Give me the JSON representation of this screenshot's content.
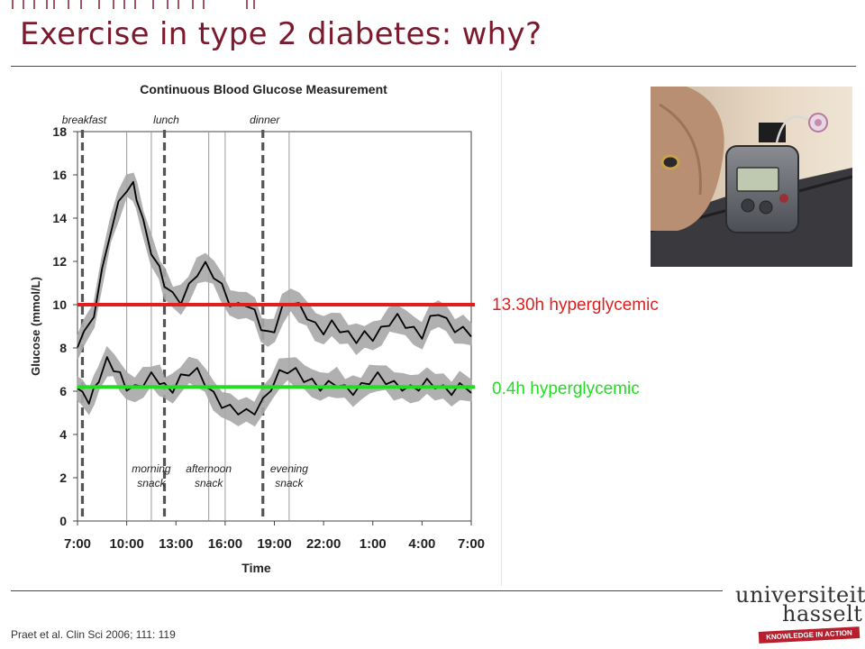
{
  "slide": {
    "title": "Exercise in type 2 diabetes: why?",
    "citation": "Praet et al. Clin Sci 2006; 111: 119",
    "colors": {
      "title": "#7a1a2c",
      "rule": "#8c2a3a",
      "hyper_line": "#e01e1e",
      "normo_line": "#22dd22"
    }
  },
  "annotations": [
    {
      "text": "13.30h hyperglycemic",
      "color": "#e01e1e"
    },
    {
      "text": "0.4h hyperglycemic",
      "color": "#22dd22"
    }
  ],
  "logo": {
    "line1": "universiteit",
    "line2": "hasselt",
    "tagline": "KNOWLEDGE IN ACTION"
  },
  "photo": {
    "icon": "insulin-pump-photo"
  },
  "chart_data": {
    "type": "line",
    "title": "Continuous Blood Glucose Measurement",
    "xlabel": "Time",
    "ylabel": "Glucose (mmol/L)",
    "x_ticks": [
      "7:00",
      "10:00",
      "13:00",
      "16:00",
      "19:00",
      "22:00",
      "1:00",
      "4:00",
      "7:00"
    ],
    "x_range_hours": [
      0,
      24
    ],
    "y_ticks": [
      0,
      2,
      4,
      6,
      8,
      10,
      12,
      14,
      16,
      18
    ],
    "ylim": [
      0,
      18
    ],
    "grid": "vertical lines at 10:00 and 16:00",
    "meals": [
      {
        "label": "breakfast",
        "hour": 0.3
      },
      {
        "label": "lunch",
        "hour": 5.3
      },
      {
        "label": "dinner",
        "hour": 11.3
      }
    ],
    "snacks": [
      {
        "label": "morning snack",
        "hour": 4.5
      },
      {
        "label": "afternoon snack",
        "hour": 8.0
      },
      {
        "label": "evening snack",
        "hour": 12.9
      }
    ],
    "series": [
      {
        "color": "#000000",
        "band_color": "#a8a8a8",
        "points": [
          [
            0,
            8.2
          ],
          [
            0.4,
            8.6
          ],
          [
            1,
            9.6
          ],
          [
            1.5,
            11.5
          ],
          [
            2,
            13.4
          ],
          [
            2.5,
            14.6
          ],
          [
            3,
            15.4
          ],
          [
            3.4,
            15.5
          ],
          [
            3.6,
            15.0
          ],
          [
            4,
            13.8
          ],
          [
            4.5,
            12.5
          ],
          [
            5,
            11.6
          ],
          [
            5.3,
            11.0
          ],
          [
            5.8,
            10.4
          ],
          [
            6.3,
            10.2
          ],
          [
            6.8,
            10.8
          ],
          [
            7.3,
            11.5
          ],
          [
            7.8,
            11.8
          ],
          [
            8.3,
            11.4
          ],
          [
            8.8,
            10.8
          ],
          [
            9.3,
            10.1
          ],
          [
            9.8,
            9.9
          ],
          [
            10.3,
            10.1
          ],
          [
            10.8,
            9.6
          ],
          [
            11.2,
            9.0
          ],
          [
            11.6,
            8.6
          ],
          [
            12,
            8.9
          ],
          [
            12.5,
            9.8
          ],
          [
            13,
            10.2
          ],
          [
            13.5,
            9.9
          ],
          [
            14,
            9.5
          ],
          [
            14.5,
            9.0
          ],
          [
            15,
            8.8
          ],
          [
            15.5,
            9.1
          ],
          [
            16,
            8.9
          ],
          [
            16.5,
            8.6
          ],
          [
            17,
            8.4
          ],
          [
            17.5,
            8.6
          ],
          [
            18,
            8.5
          ],
          [
            18.5,
            8.8
          ],
          [
            19,
            9.2
          ],
          [
            19.5,
            9.4
          ],
          [
            20,
            9.1
          ],
          [
            20.5,
            8.8
          ],
          [
            21,
            8.6
          ],
          [
            21.5,
            9.3
          ],
          [
            22,
            9.7
          ],
          [
            22.5,
            9.2
          ],
          [
            23,
            8.9
          ],
          [
            23.5,
            8.8
          ],
          [
            24,
            8.7
          ]
        ]
      },
      {
        "color": "#000000",
        "band_color": "#a8a8a8",
        "points": [
          [
            0,
            6.3
          ],
          [
            0.3,
            5.8
          ],
          [
            0.7,
            5.6
          ],
          [
            1,
            6.0
          ],
          [
            1.3,
            6.6
          ],
          [
            1.8,
            7.4
          ],
          [
            2.2,
            7.1
          ],
          [
            2.6,
            6.7
          ],
          [
            3,
            6.2
          ],
          [
            3.5,
            6.1
          ],
          [
            4,
            6.4
          ],
          [
            4.5,
            6.7
          ],
          [
            5,
            6.5
          ],
          [
            5.3,
            6.2
          ],
          [
            5.8,
            6.1
          ],
          [
            6.3,
            6.6
          ],
          [
            6.8,
            6.9
          ],
          [
            7.3,
            6.9
          ],
          [
            7.8,
            6.4
          ],
          [
            8.3,
            5.8
          ],
          [
            8.8,
            5.4
          ],
          [
            9.3,
            5.2
          ],
          [
            9.8,
            5.1
          ],
          [
            10.3,
            5.0
          ],
          [
            10.8,
            5.1
          ],
          [
            11.3,
            5.5
          ],
          [
            11.8,
            6.2
          ],
          [
            12.3,
            6.8
          ],
          [
            12.8,
            7.0
          ],
          [
            13.3,
            6.9
          ],
          [
            13.8,
            6.6
          ],
          [
            14.3,
            6.4
          ],
          [
            14.8,
            6.2
          ],
          [
            15.3,
            6.3
          ],
          [
            15.8,
            6.4
          ],
          [
            16.3,
            6.1
          ],
          [
            16.8,
            6.0
          ],
          [
            17.3,
            6.2
          ],
          [
            17.8,
            6.5
          ],
          [
            18.3,
            6.7
          ],
          [
            18.8,
            6.5
          ],
          [
            19.3,
            6.3
          ],
          [
            19.8,
            6.2
          ],
          [
            20.3,
            6.1
          ],
          [
            20.8,
            6.2
          ],
          [
            21.3,
            6.4
          ],
          [
            21.8,
            6.3
          ],
          [
            22.3,
            6.1
          ],
          [
            22.8,
            6.0
          ],
          [
            23.3,
            6.2
          ],
          [
            24,
            6.1
          ]
        ]
      }
    ],
    "reference_lines": [
      {
        "y": 10,
        "color": "#e01e1e",
        "annotation": "13.30h hyperglycemic"
      },
      {
        "y": 6.2,
        "color": "#22dd22",
        "annotation": "0.4h hyperglycemic"
      }
    ]
  }
}
